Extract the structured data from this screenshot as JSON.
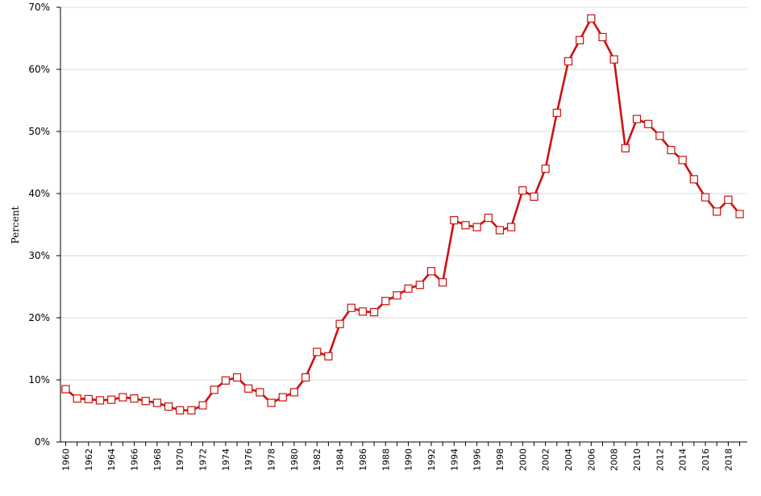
{
  "chart_data": {
    "type": "line",
    "ylabel": "Percent",
    "ylim": [
      0,
      70
    ],
    "yticks": [
      "0%",
      "10%",
      "20%",
      "30%",
      "40%",
      "50%",
      "60%",
      "70%"
    ],
    "yticks_values": [
      0,
      10,
      20,
      30,
      40,
      50,
      60,
      70
    ],
    "xlim": [
      1960,
      2019
    ],
    "xtick_labels": [
      "1960",
      "1962",
      "1964",
      "1966",
      "1968",
      "1970",
      "1972",
      "1974",
      "1976",
      "1978",
      "1980",
      "1982",
      "1984",
      "1986",
      "1988",
      "1990",
      "1992",
      "1994",
      "1996",
      "1998",
      "2000",
      "2002",
      "2004",
      "2006",
      "2008",
      "2010",
      "2012",
      "2014",
      "2016",
      "2018"
    ],
    "grid": "horizontal",
    "colors": {
      "line": "#cc1111",
      "marker_fill": "#ffffff",
      "marker_stroke": "#cc1111",
      "grid": "#d8d8d8",
      "axis": "#000000"
    },
    "x": [
      1960,
      1961,
      1962,
      1963,
      1964,
      1965,
      1966,
      1967,
      1968,
      1969,
      1970,
      1971,
      1972,
      1973,
      1974,
      1975,
      1976,
      1977,
      1978,
      1979,
      1980,
      1981,
      1982,
      1983,
      1984,
      1985,
      1986,
      1987,
      1988,
      1989,
      1990,
      1991,
      1992,
      1993,
      1994,
      1995,
      1996,
      1997,
      1998,
      1999,
      2000,
      2001,
      2002,
      2003,
      2004,
      2005,
      2006,
      2007,
      2008,
      2009,
      2010,
      2011,
      2012,
      2013,
      2014,
      2015,
      2016,
      2017,
      2018,
      2019
    ],
    "values": [
      8.5,
      7.0,
      6.9,
      6.7,
      6.8,
      7.2,
      7.0,
      6.6,
      6.3,
      5.7,
      5.1,
      5.1,
      5.9,
      8.4,
      9.9,
      10.4,
      8.6,
      8.0,
      6.3,
      7.2,
      8.0,
      10.4,
      14.5,
      13.8,
      19.0,
      21.6,
      21.0,
      20.9,
      22.7,
      23.6,
      24.7,
      25.3,
      27.5,
      25.7,
      35.7,
      34.9,
      34.6,
      36.1,
      34.1,
      34.6,
      40.5,
      39.5,
      44.0,
      53.0,
      61.3,
      64.7,
      68.2,
      65.2,
      61.6,
      47.3,
      52.0,
      51.2,
      49.3,
      47.0,
      45.4,
      42.3,
      39.4,
      37.1,
      39.0,
      36.7
    ]
  }
}
